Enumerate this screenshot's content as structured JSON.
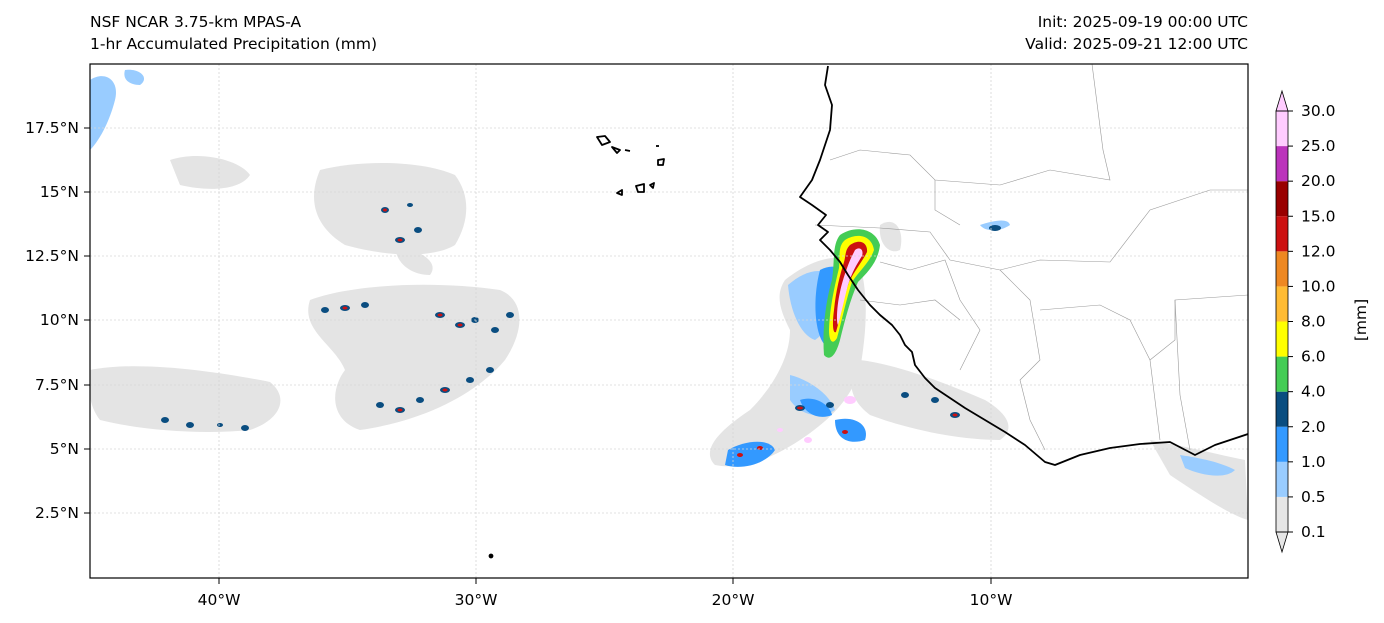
{
  "title": {
    "model": "NSF NCAR 3.75-km MPAS-A",
    "field": "1-hr Accumulated Precipitation (mm)",
    "init": "Init: 2025-09-19 00:00 UTC",
    "valid": "Valid: 2025-09-21 12:00 UTC"
  },
  "map": {
    "lat_labels": [
      "17.5°N",
      "15°N",
      "12.5°N",
      "10°N",
      "7.5°N",
      "5°N",
      "2.5°N"
    ],
    "lon_labels": [
      "40°W",
      "30°W",
      "20°W",
      "10°W"
    ],
    "gridlines": true
  },
  "colorbar": {
    "label": "[mm]",
    "ticks": [
      "0.1",
      "0.5",
      "1.0",
      "2.0",
      "4.0",
      "6.0",
      "8.0",
      "10.0",
      "12.0",
      "15.0",
      "20.0",
      "25.0",
      "30.0"
    ],
    "colors": [
      "#e6e6e6",
      "#99ccff",
      "#3399ff",
      "#0a4d80",
      "#44cc55",
      "#ffff00",
      "#ffbb33",
      "#ee8822",
      "#cc1111",
      "#990000",
      "#bb33bb",
      "#ffccff"
    ],
    "extend": "both"
  }
}
